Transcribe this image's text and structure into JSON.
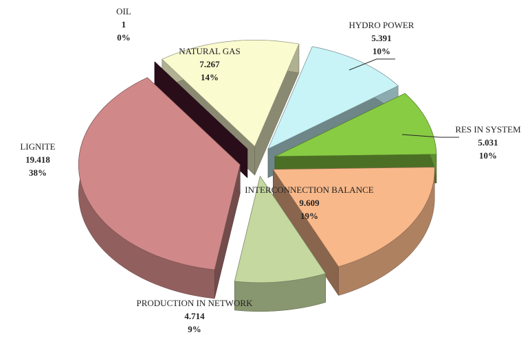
{
  "chart_data": {
    "type": "pie",
    "categories": [
      "OIL",
      "NATURAL GAS",
      "HYDRO POWER",
      "RES IN SYSTEM",
      "INTERCONNECTION BALANCE",
      "PRODUCTION IN NETWORK",
      "LIGNITE"
    ],
    "values": [
      1,
      7267,
      5391,
      5031,
      9609,
      4714,
      19418
    ],
    "value_labels": [
      "1",
      "7.267",
      "5.391",
      "5.031",
      "9.609",
      "4.714",
      "19.418"
    ],
    "percent_labels": [
      "0%",
      "14%",
      "10%",
      "10%",
      "19%",
      "9%",
      "38%"
    ],
    "colors": [
      "#4a1a30",
      "#fbfbd0",
      "#c8f4f8",
      "#88cc44",
      "#f8b88a",
      "#c4d8a0",
      "#d08888"
    ]
  }
}
